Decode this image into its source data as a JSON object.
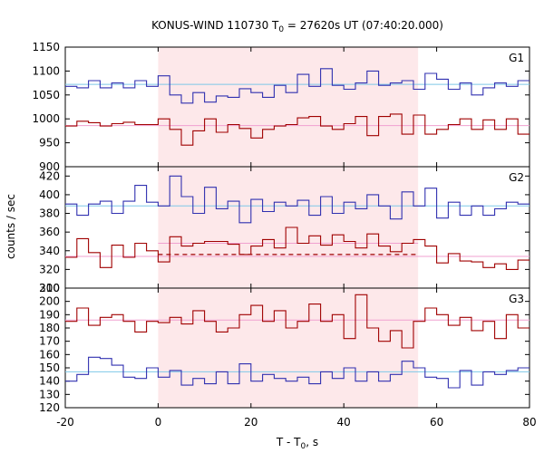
{
  "chart_data": {
    "type": "line",
    "title_prefix": "KONUS-WIND 110730 T",
    "title_sub": "0",
    "title_suffix": " = 27620s UT (07:40:20.000)",
    "ylabel": "counts / sec",
    "xlabel_prefix": "T - T",
    "xlabel_sub": "0",
    "xlabel_suffix": ", s",
    "xlim": [
      -20,
      80
    ],
    "xticks": [
      "-20",
      "0",
      "20",
      "40",
      "60",
      "80"
    ],
    "highlight": {
      "from": 0,
      "to": 56,
      "color": "#fde8ea"
    },
    "colors": {
      "blue": "#3030b0",
      "red": "#a00000",
      "bg_blue": "#7ec8e8",
      "bg_red": "#f0a0d0",
      "dashed": "#a00000"
    },
    "panels": [
      {
        "name": "G1",
        "ylim": [
          900,
          1150
        ],
        "yticks": [
          "900",
          "950",
          "1000",
          "1050",
          "1100",
          "1150"
        ],
        "blue_values": [
          1068,
          1065,
          1080,
          1065,
          1075,
          1065,
          1080,
          1068,
          1090,
          1050,
          1033,
          1055,
          1035,
          1048,
          1045,
          1063,
          1055,
          1045,
          1070,
          1055,
          1093,
          1068,
          1105,
          1070,
          1062,
          1075,
          1100,
          1070,
          1075,
          1080,
          1062,
          1095,
          1083,
          1062,
          1075,
          1050,
          1065,
          1075,
          1068,
          1080
        ],
        "red_values": [
          985,
          995,
          992,
          985,
          990,
          993,
          988,
          988,
          1000,
          978,
          945,
          975,
          1000,
          972,
          988,
          980,
          960,
          978,
          985,
          988,
          1002,
          1005,
          985,
          978,
          990,
          1005,
          965,
          1005,
          1010,
          968,
          1008,
          968,
          978,
          988,
          1000,
          978,
          998,
          978,
          1000,
          968
        ],
        "bg_blue": 1072,
        "bg_red": 986
      },
      {
        "name": "G2",
        "ylim": [
          300,
          430
        ],
        "yticks": [
          "300",
          "320",
          "340",
          "360",
          "380",
          "400",
          "420"
        ],
        "blue_values": [
          390,
          378,
          390,
          393,
          380,
          393,
          410,
          392,
          388,
          420,
          398,
          380,
          408,
          385,
          393,
          370,
          395,
          382,
          392,
          388,
          394,
          378,
          398,
          380,
          392,
          385,
          400,
          388,
          374,
          403,
          388,
          407,
          375,
          392,
          378,
          388,
          378,
          385,
          392,
          390
        ],
        "red_values": [
          333,
          353,
          338,
          322,
          346,
          333,
          348,
          340,
          328,
          355,
          345,
          348,
          350,
          350,
          347,
          336,
          345,
          352,
          343,
          365,
          348,
          356,
          346,
          357,
          350,
          343,
          358,
          345,
          339,
          348,
          352,
          345,
          327,
          337,
          329,
          328,
          322,
          326,
          320,
          330
        ],
        "bg_blue": 388,
        "bg_red": 334,
        "bg_red2": 348,
        "dashed_level": 336
      },
      {
        "name": "G3",
        "ylim": [
          120,
          210
        ],
        "yticks": [
          "120",
          "130",
          "140",
          "150",
          "160",
          "170",
          "180",
          "190",
          "200",
          "210"
        ],
        "blue_values": [
          140,
          145,
          158,
          157,
          152,
          143,
          142,
          150,
          143,
          148,
          137,
          142,
          138,
          147,
          138,
          153,
          140,
          145,
          142,
          140,
          143,
          138,
          147,
          142,
          150,
          140,
          147,
          140,
          145,
          155,
          150,
          143,
          142,
          135,
          148,
          137,
          147,
          145,
          148,
          150
        ],
        "red_values": [
          185,
          195,
          182,
          188,
          190,
          185,
          177,
          185,
          184,
          188,
          183,
          193,
          185,
          177,
          180,
          190,
          197,
          185,
          193,
          180,
          185,
          198,
          185,
          190,
          172,
          205,
          180,
          170,
          178,
          165,
          185,
          195,
          190,
          182,
          188,
          178,
          185,
          172,
          190,
          180
        ],
        "bg_blue": 147,
        "bg_red": 186
      }
    ]
  }
}
